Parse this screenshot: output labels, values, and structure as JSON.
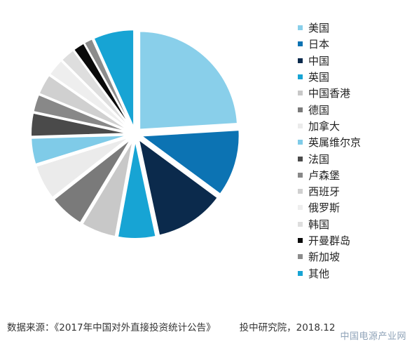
{
  "chart_data": {
    "type": "pie",
    "exploded": true,
    "start_angle_deg": 0,
    "direction": "clockwise",
    "slices": [
      {
        "label": "美国",
        "value": 25.0,
        "color": "#89CFEA"
      },
      {
        "label": "日本",
        "value": 11.5,
        "color": "#0C73B3"
      },
      {
        "label": "中国",
        "value": 12.0,
        "color": "#0B2A4C"
      },
      {
        "label": "英国",
        "value": 6.5,
        "color": "#17A4D4"
      },
      {
        "label": "中国香港",
        "value": 6.0,
        "color": "#C8C8C8"
      },
      {
        "label": "德国",
        "value": 6.0,
        "color": "#7A7A7A"
      },
      {
        "label": "加拿大",
        "value": 6.0,
        "color": "#EBEBEB"
      },
      {
        "label": "英属维尔京",
        "value": 4.5,
        "color": "#7FCBE8"
      },
      {
        "label": "法国",
        "value": 4.0,
        "color": "#4A4A4A"
      },
      {
        "label": "卢森堡",
        "value": 3.0,
        "color": "#888888"
      },
      {
        "label": "西班牙",
        "value": 3.5,
        "color": "#D0D0D0"
      },
      {
        "label": "俄罗斯",
        "value": 3.0,
        "color": "#EEEEEE"
      },
      {
        "label": "韩国",
        "value": 2.5,
        "color": "#DEDEDE"
      },
      {
        "label": "开曼群岛",
        "value": 2.0,
        "color": "#0A0A0A"
      },
      {
        "label": "新加坡",
        "value": 1.5,
        "color": "#8C8C8C"
      },
      {
        "label": "其他",
        "value": 7.0,
        "color": "#17A4D4"
      }
    ]
  },
  "source": {
    "text": "数据来源：《2017年中国对外直接投资统计公告》",
    "publisher": "投中研究院，2018.12"
  },
  "watermark": "中国电源产业网"
}
